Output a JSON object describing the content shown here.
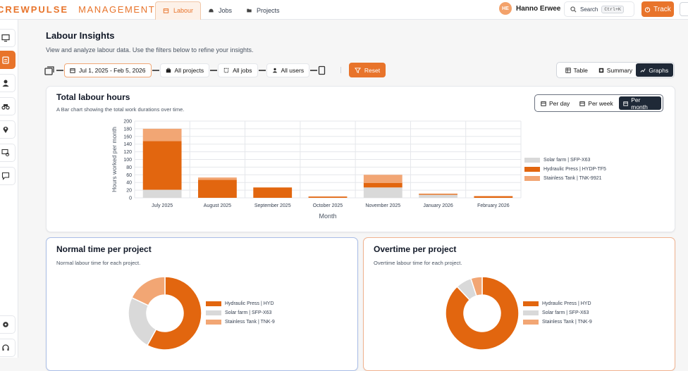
{
  "brand": {
    "name": "CREWPULSE",
    "suffix": "MANAGEMENT"
  },
  "nav": {
    "tabs": [
      {
        "label": "Labour",
        "active": true,
        "icon": "calendar-icon"
      },
      {
        "label": "Jobs",
        "icon": "hardhat-icon"
      },
      {
        "label": "Projects",
        "icon": "folder-icon"
      }
    ]
  },
  "user": {
    "initials": "HE",
    "name": "Hanno Erwee"
  },
  "search": {
    "label": "Search",
    "shortcut": "Ctrl+K"
  },
  "track": {
    "label": "Track"
  },
  "page": {
    "title": "Labour Insights",
    "subtitle": "View and analyze labour data. Use the filters below to refine your insights."
  },
  "filters": {
    "date": "Jul 1, 2025 - Feb 5, 2026",
    "projects": "All projects",
    "jobs": "All jobs",
    "users": "All users",
    "reset": "Reset"
  },
  "views": [
    {
      "label": "Table",
      "active": false
    },
    {
      "label": "Summary",
      "active": false
    },
    {
      "label": "Graphs",
      "active": true
    }
  ],
  "periods": [
    {
      "label": "Per day",
      "active": false
    },
    {
      "label": "Per week",
      "active": false
    },
    {
      "label": "Per month",
      "active": true
    }
  ],
  "colors": {
    "accent": "#e8742b",
    "solar": "#d9d9d9",
    "hydraulic": "#e2660f",
    "stainless": "#f2a674"
  },
  "total_hours": {
    "title": "Total labour hours",
    "subtitle": "A Bar chart showing the total work durations over time."
  },
  "normal_time": {
    "title": "Normal time per project",
    "subtitle": "Normal labour time for each project.",
    "legend": [
      "Hydraulic Press | HYD",
      "Solar farm | SFP-X63",
      "Stainless Tank | TNK-9"
    ]
  },
  "overtime": {
    "title": "Overtime per project",
    "subtitle": "Overtime labour time for each project.",
    "legend": [
      "Hydraulic Press | HYD",
      "Solar farm | SFP-X63",
      "Stainless Tank | TNK-9"
    ]
  },
  "chart_data": [
    {
      "type": "bar",
      "stacked": true,
      "xlabel": "Month",
      "ylabel": "Hours worked per month",
      "ylim": [
        0,
        200
      ],
      "yticks": [
        0,
        20,
        40,
        60,
        80,
        100,
        120,
        140,
        160,
        180,
        200
      ],
      "grid": true,
      "legend_position": "right",
      "categories": [
        "July 2025",
        "August 2025",
        "September 2025",
        "October 2025",
        "November 2025",
        "January 2026",
        "February 2026"
      ],
      "series": [
        {
          "name": "Solar farm | SFP-X63",
          "color": "#d9d9d9",
          "values": [
            21,
            0,
            0,
            0,
            27,
            8,
            0
          ]
        },
        {
          "name": "Hydraulic Press | HYDP-TF5",
          "color": "#e2660f",
          "values": [
            127,
            47,
            27,
            3,
            12,
            2,
            4
          ]
        },
        {
          "name": "Stainless Tank | TNK-9921",
          "color": "#f2a674",
          "values": [
            32,
            6,
            0,
            1,
            21,
            1,
            1
          ]
        }
      ]
    },
    {
      "type": "pie",
      "donut": true,
      "labels": [
        "Hydraulic Press",
        "Solar farm",
        "Stainless Tank"
      ],
      "values": [
        58,
        24,
        18
      ],
      "colors": [
        "#e2660f",
        "#d9d9d9",
        "#f2a674"
      ]
    },
    {
      "type": "pie",
      "donut": true,
      "labels": [
        "Hydraulic Press",
        "Solar farm",
        "Stainless Tank"
      ],
      "values": [
        88,
        7,
        5
      ],
      "colors": [
        "#e2660f",
        "#d9d9d9",
        "#f2a674"
      ]
    }
  ]
}
